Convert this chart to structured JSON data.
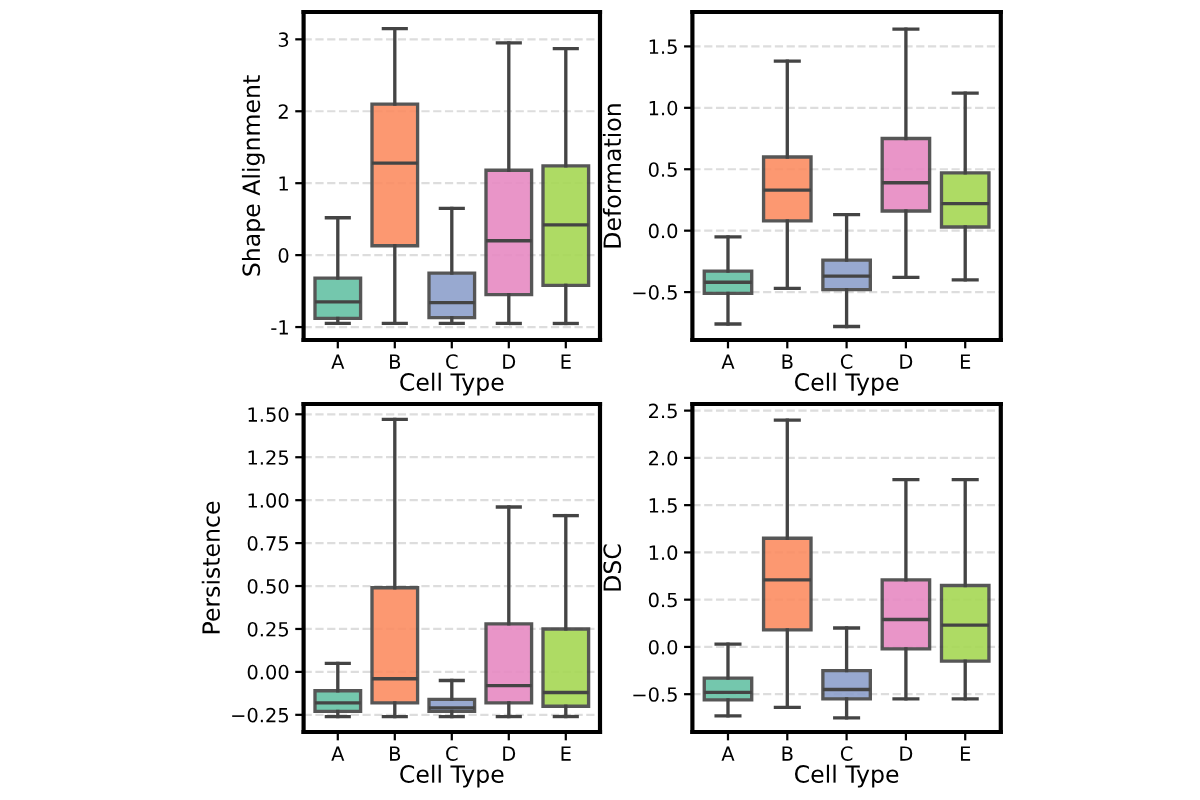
{
  "chart_data": [
    {
      "type": "box",
      "xlabel": "Cell Type",
      "ylabel": "Shape Alignment",
      "categories": [
        "A",
        "B",
        "C",
        "D",
        "E"
      ],
      "colors": [
        "#66c2a5",
        "#fc8d62",
        "#8da0cb",
        "#e78ac3",
        "#a6d854"
      ],
      "ylim": [
        -1.18,
        3.38
      ],
      "yticks": [
        -1,
        0,
        1,
        2,
        3
      ],
      "grid": "y",
      "boxes": [
        {
          "low": -0.95,
          "q1": -0.88,
          "median": -0.65,
          "q3": -0.32,
          "high": 0.52
        },
        {
          "low": -0.95,
          "q1": 0.13,
          "median": 1.28,
          "q3": 2.1,
          "high": 3.15
        },
        {
          "low": -0.95,
          "q1": -0.87,
          "median": -0.66,
          "q3": -0.25,
          "high": 0.65
        },
        {
          "low": -0.95,
          "q1": -0.55,
          "median": 0.2,
          "q3": 1.18,
          "high": 2.95
        },
        {
          "low": -0.95,
          "q1": -0.42,
          "median": 0.42,
          "q3": 1.24,
          "high": 2.87
        }
      ]
    },
    {
      "type": "box",
      "xlabel": "Cell Type",
      "ylabel": "Deformation",
      "categories": [
        "A",
        "B",
        "C",
        "D",
        "E"
      ],
      "colors": [
        "#66c2a5",
        "#fc8d62",
        "#8da0cb",
        "#e78ac3",
        "#a6d854"
      ],
      "ylim": [
        -0.89,
        1.78
      ],
      "yticks": [
        {
          "value": -0.5,
          "label": "−0.5"
        },
        {
          "value": 0,
          "label": "0.0"
        },
        0.5,
        {
          "value": 1,
          "label": "1.0"
        },
        1.5
      ],
      "grid": "y",
      "boxes": [
        {
          "low": -0.76,
          "q1": -0.51,
          "median": -0.42,
          "q3": -0.33,
          "high": -0.05
        },
        {
          "low": -0.47,
          "q1": 0.08,
          "median": 0.33,
          "q3": 0.6,
          "high": 1.38
        },
        {
          "low": -0.78,
          "q1": -0.48,
          "median": -0.37,
          "q3": -0.24,
          "high": 0.13
        },
        {
          "low": -0.38,
          "q1": 0.16,
          "median": 0.39,
          "q3": 0.75,
          "high": 1.64
        },
        {
          "low": -0.4,
          "q1": 0.03,
          "median": 0.22,
          "q3": 0.47,
          "high": 1.12
        }
      ]
    },
    {
      "type": "box",
      "xlabel": "Cell Type",
      "ylabel": "Persistence",
      "categories": [
        "A",
        "B",
        "C",
        "D",
        "E"
      ],
      "colors": [
        "#66c2a5",
        "#fc8d62",
        "#8da0cb",
        "#e78ac3",
        "#a6d854"
      ],
      "ylim": [
        -0.35,
        1.56
      ],
      "yticks": [
        {
          "value": -0.25,
          "label": "−0.25"
        },
        {
          "value": 0,
          "label": "0.00"
        },
        0.25,
        {
          "value": 0.5,
          "label": "0.50"
        },
        0.75,
        {
          "value": 1,
          "label": "1.00"
        },
        1.25,
        {
          "value": 1.5,
          "label": "1.50"
        }
      ],
      "grid": "y",
      "boxes": [
        {
          "low": -0.26,
          "q1": -0.23,
          "median": -0.18,
          "q3": -0.11,
          "high": 0.05
        },
        {
          "low": -0.26,
          "q1": -0.18,
          "median": -0.04,
          "q3": 0.49,
          "high": 1.47
        },
        {
          "low": -0.26,
          "q1": -0.23,
          "median": -0.21,
          "q3": -0.16,
          "high": -0.05
        },
        {
          "low": -0.26,
          "q1": -0.18,
          "median": -0.08,
          "q3": 0.28,
          "high": 0.96
        },
        {
          "low": -0.26,
          "q1": -0.2,
          "median": -0.12,
          "q3": 0.25,
          "high": 0.91
        }
      ]
    },
    {
      "type": "box",
      "xlabel": "Cell Type",
      "ylabel": "DSC",
      "categories": [
        "A",
        "B",
        "C",
        "D",
        "E"
      ],
      "colors": [
        "#66c2a5",
        "#fc8d62",
        "#8da0cb",
        "#e78ac3",
        "#a6d854"
      ],
      "ylim": [
        -0.9,
        2.57
      ],
      "yticks": [
        {
          "value": -0.5,
          "label": "−0.5"
        },
        {
          "value": 0,
          "label": "0.0"
        },
        0.5,
        {
          "value": 1,
          "label": "1.0"
        },
        1.5,
        {
          "value": 2,
          "label": "2.0"
        },
        2.5
      ],
      "grid": "y",
      "boxes": [
        {
          "low": -0.73,
          "q1": -0.56,
          "median": -0.48,
          "q3": -0.33,
          "high": 0.03
        },
        {
          "low": -0.64,
          "q1": 0.18,
          "median": 0.71,
          "q3": 1.15,
          "high": 2.4
        },
        {
          "low": -0.75,
          "q1": -0.55,
          "median": -0.45,
          "q3": -0.25,
          "high": 0.2
        },
        {
          "low": -0.55,
          "q1": -0.02,
          "median": 0.29,
          "q3": 0.71,
          "high": 1.77
        },
        {
          "low": -0.55,
          "q1": -0.15,
          "median": 0.23,
          "q3": 0.65,
          "high": 1.77
        }
      ]
    }
  ]
}
